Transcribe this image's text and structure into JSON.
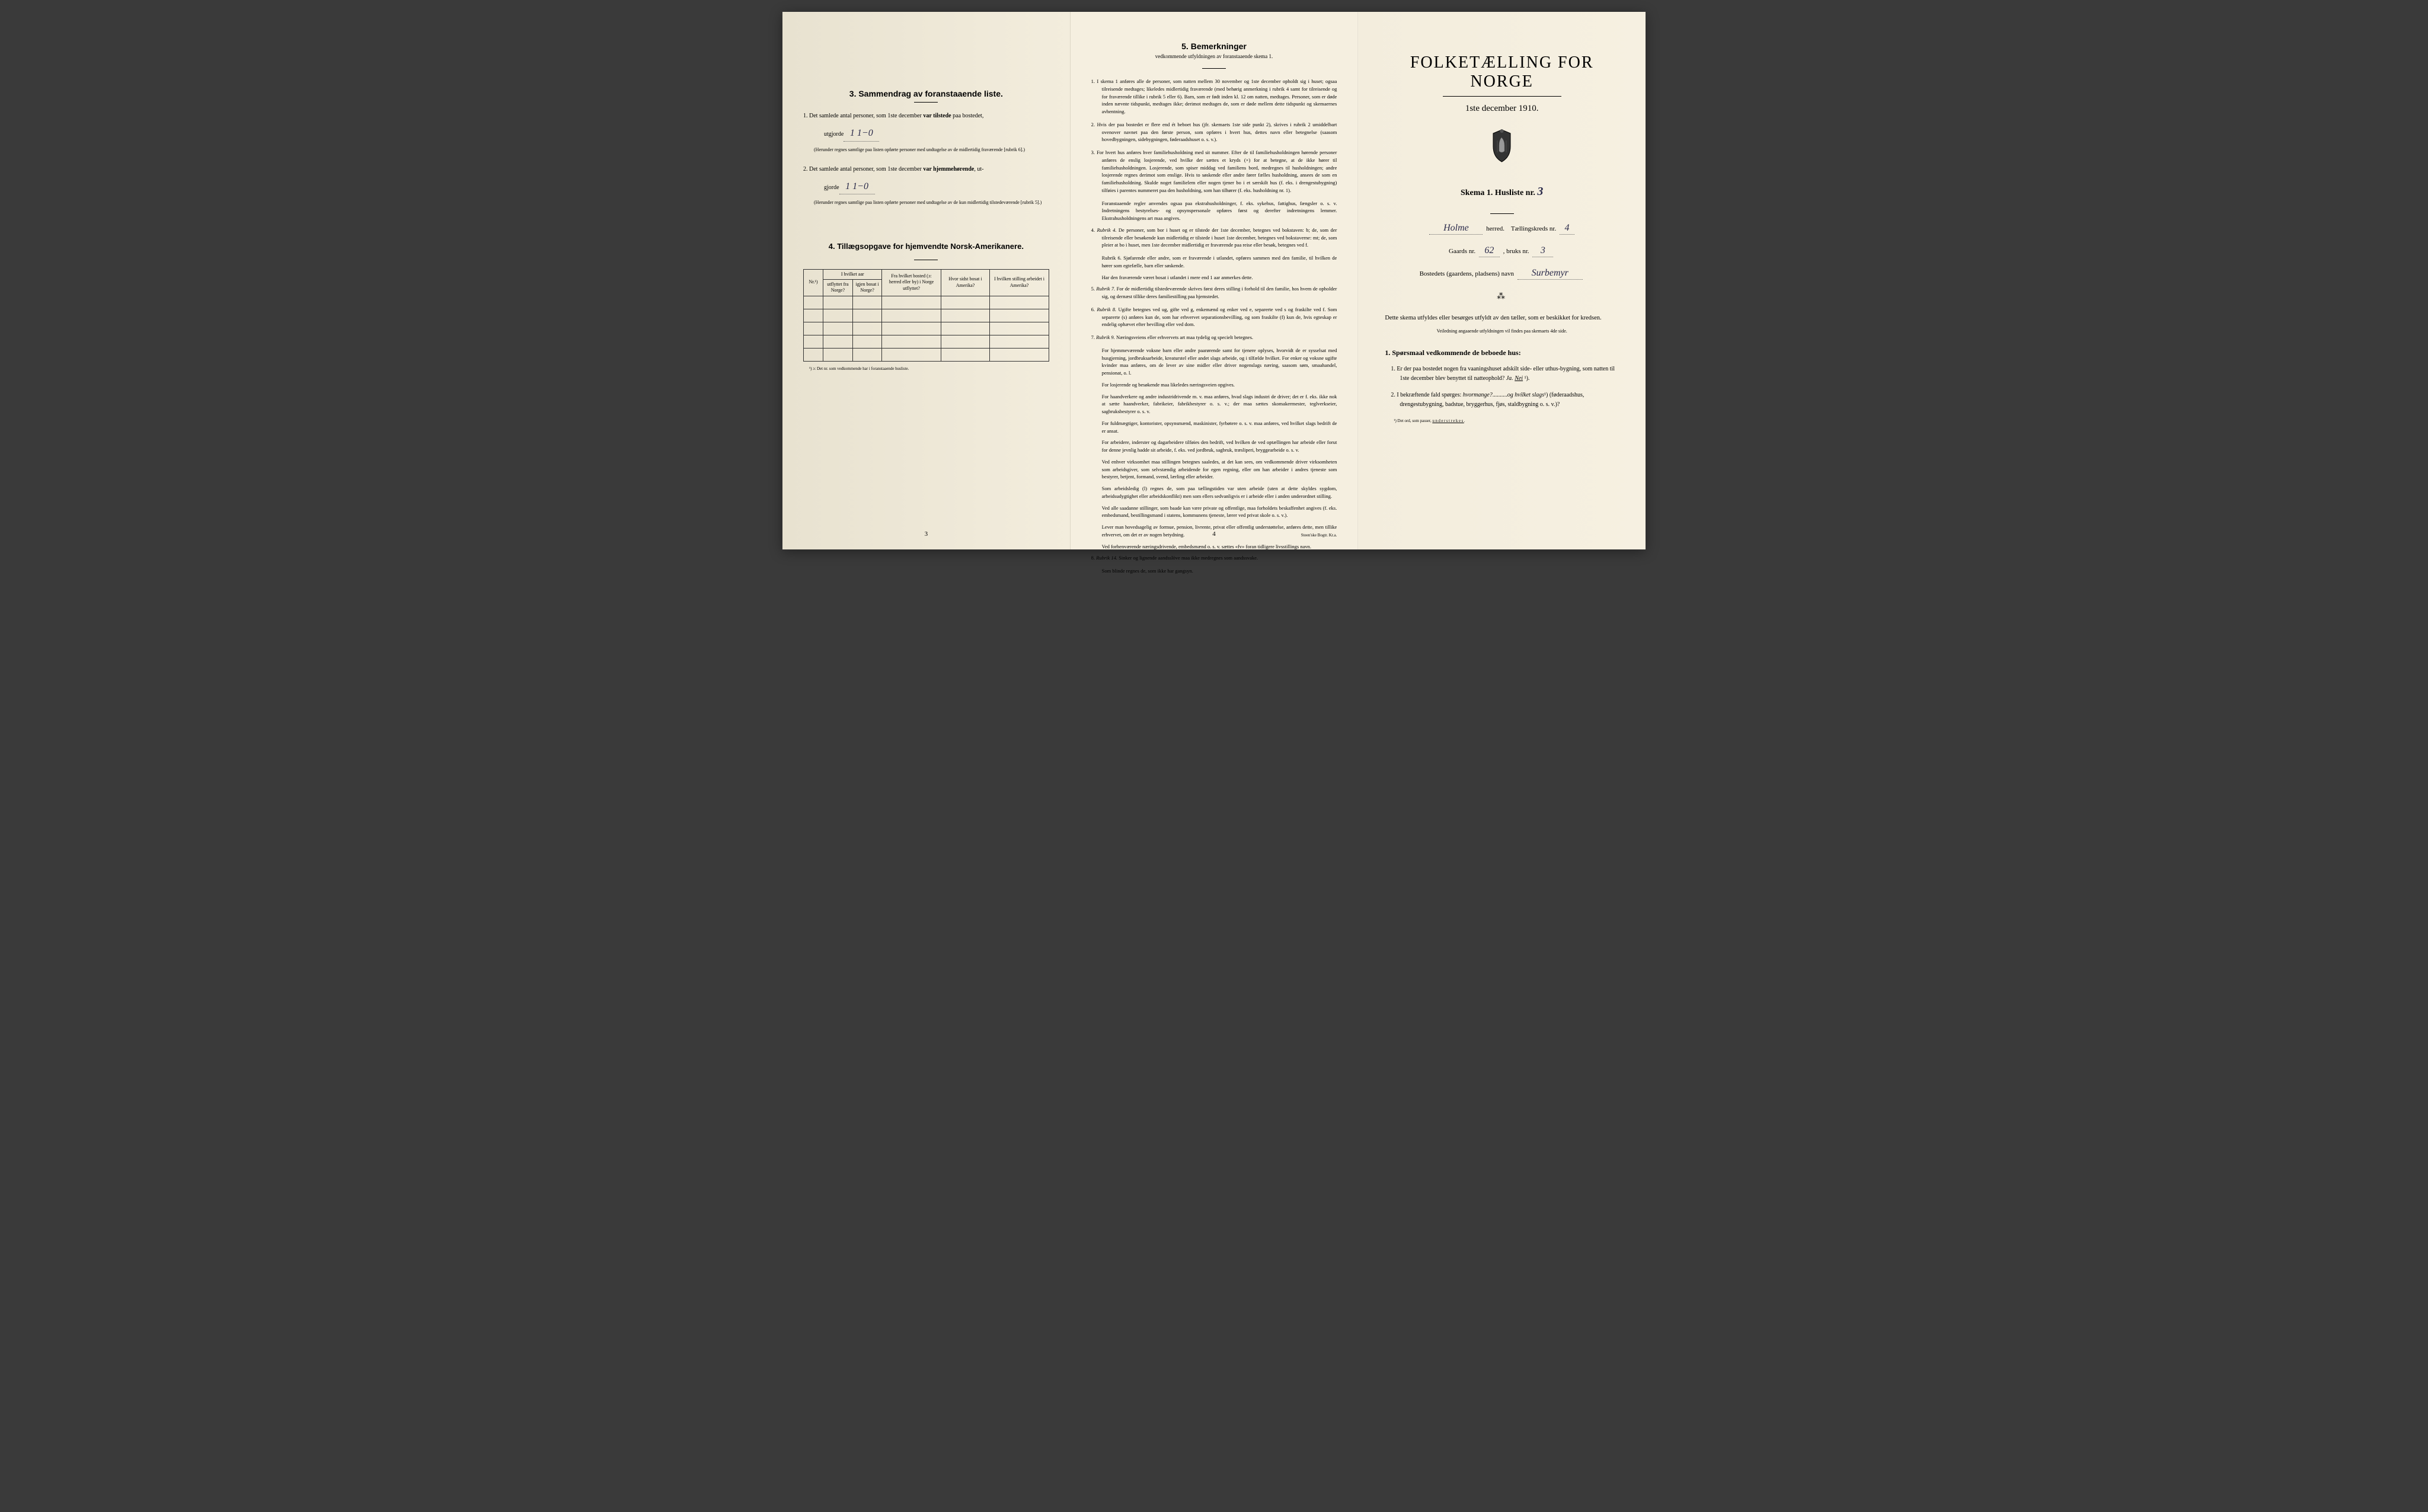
{
  "colors": {
    "paper": "#f5efe0",
    "paper_dark": "#e8e2d0",
    "text": "#1a1a1a",
    "handwriting": "#2a2a4a",
    "border": "#333333"
  },
  "page1": {
    "section3_heading": "3.   Sammendrag av foranstaaende liste.",
    "item1_prefix": "1.  Det samlede antal personer, som 1ste december ",
    "item1_bold": "var tilstede",
    "item1_suffix": " paa bostedet,",
    "item1_line2": "utgjorde",
    "item1_value": "1    1−0",
    "item1_note": "(Herunder regnes samtlige paa listen opførte personer med undtagelse av de midlertidig fraværende [rubrik 6].)",
    "item2_prefix": "2.  Det samlede antal personer, som 1ste december ",
    "item2_bold": "var hjemmehørende",
    "item2_suffix": ", ut-",
    "item2_line2": "gjorde",
    "item2_value": "1    1−0",
    "item2_note": "(Herunder regnes samtlige paa listen opførte personer med undtagelse av de kun midlertidig tilstedeværende [rubrik 5].)",
    "section4_heading": "4.  Tillægsopgave for hjemvendte Norsk-Amerikanere.",
    "table_headers": {
      "col1": "Nr.¹)",
      "col2_top": "I hvilket aar",
      "col2a": "utflyttet fra Norge?",
      "col2b": "igjen bosat i Norge?",
      "col3": "Fra hvilket bosted (ɔ: herred eller by) i Norge utflyttet?",
      "col4": "Hvor sidst bosat i Amerika?",
      "col5": "I hvilken stilling arbeidet i Amerika?"
    },
    "table_footnote": "¹) ɔ: Det nr. som vedkommende har i foranstaaende husliste.",
    "page_number": "3"
  },
  "page2": {
    "heading": "5.   Bemerkninger",
    "subheading": "vedkommende utfyldningen av foranstaaende skema 1.",
    "rules": [
      {
        "num": "1.",
        "text": "I skema 1 anføres alle de personer, som natten mellem 30 november og 1ste december opholdt sig i huset; ogsaa tilreisende medtages; likeledes midlertidig fraværende (med behørig anmerkning i rubrik 4 samt for tilreisende og for fraværende tillike i rubrik 5 eller 6). Barn, som er født inden kl. 12 om natten, medtages. Personer, som er døde inden nævnte tidspunkt, medtages ikke; derimot medtages de, som er døde mellem dette tidspunkt og skemaernes avhentning."
      },
      {
        "num": "2.",
        "text": "Hvis der paa bostedet er flere end ét beboet hus (jfr. skemaets 1ste side punkt 2), skrives i rubrik 2 umiddelbart ovenover navnet paa den første person, som opføres i hvert hus, dettes navn eller betegnelse (saasom hovedbygningen, sidebygningen, føderaadshuset o. s. v.)."
      },
      {
        "num": "3.",
        "text": "For hvert hus anføres hver familiehusholdning med sit nummer. Efter de til familiehusholdningen hørende personer anføres de enslig losjerende, ved hvilke der sættes et kryds (×) for at betegne, at de ikke hører til familiehusholdningen. Losjerende, som spiser middag ved familiens bord, medregnes til husholdningen; andre losjerende regnes derimot som enslige. Hvis to søskende eller andre fører fælles husholdning, ansees de som en familiehusholdning. Skulde noget familielem eller nogen tjener bo i et særskilt hus (f. eks. i drengestubygning) tilføies i parentes nummeret paa den husholdning, som han tilhører (f. eks. husholdning nr. 1).",
        "sub": "Foranstaaende regler anvendes ogsaa paa ekstrahusholdninger, f. eks. sykehus, fattighus, fængsler o. s. v. Indretningens bestyrelses- og opsynspersonale opføres først og derefter indretningens lemmer. Ekstrahusholdningens art maa angives."
      },
      {
        "num": "4.",
        "heading": "Rubrik 4.",
        "text": "De personer, som bor i huset og er tilstede der 1ste december, betegnes ved bokstaven: b; de, som der tilreisende eller besøkende kun midlertidig er tilstede i huset 1ste december, betegnes ved bokstaverne: mt; de, som pleier at bo i huset, men 1ste december midlertidig er fraværende paa reise eller besøk, betegnes ved f.",
        "sub1": "Rubrik 6.  Sjøfarende eller andre, som er fraværende i utlandet, opføres sammen med den familie, til hvilken de hører som egtefælle, barn eller søskende.",
        "sub2": "Har den fraværende været bosat i utlandet i mere end 1 aar anmerkes dette."
      },
      {
        "num": "5.",
        "heading": "Rubrik 7.",
        "text": "For de midlertidig tilstedeværende skrives først deres stilling i forhold til den familie, hos hvem de opholder sig, og dernæst tillike deres familiestilling paa hjemstedet."
      },
      {
        "num": "6.",
        "heading": "Rubrik 8.",
        "text": "Ugifte betegnes ved ug, gifte ved g, enkemænd og enker ved e, separerte ved s og fraskilte ved f. Som separerte (s) anføres kun de, som har erhvervet separationsbevilling, og som fraskilte (f) kun de, hvis egteskap er endelig ophævet efter bevilling eller ved dom."
      },
      {
        "num": "7.",
        "heading": "Rubrik 9.",
        "text": "Næringsveiens eller erhvervets art maa tydelig og specielt betegnes.",
        "para1": "For hjemmeværende voksne barn eller andre paarørende samt for tjenere oplyses, hvorvidt de er sysselsat med husgjerning, jordbruksarbeide, kreaturstel eller andet slags arbeide, og i tilfælde hvilket. For enker og voksne ugifte kvinder maa anføres, om de lever av sine midler eller driver nogenslags næring, saasom søm, smaahandel, pensionat, o. l.",
        "para2": "For losjerende og besøkende maa likeledes næringsveien opgives.",
        "para3": "For haandverkere og andre industridrivende m. v. maa anføres, hvad slags industri de driver; det er f. eks. ikke nok at sætte haandverker, fabrikeier, fabrikbestyrer o. s. v.; der maa sættes skomakermester, teglverkseier, sagbruksbestyrer o. s. v.",
        "para4": "For fuldmægtiger, kontorister, opsynsmænd, maskinister, fyrbøtere o. s. v. maa anføres, ved hvilket slags bedrift de er ansat.",
        "para5": "For arbeidere, inderster og dagarbeidere tilføies den bedrift, ved hvilken de ved optællingen har arbeide eller forut for denne jevnlig hadde sit arbeide, f. eks. ved jordbruk, sagbruk, træsliperi, bryggearbeide o. s. v.",
        "para6": "Ved enhver virksomhet maa stillingen betegnes saaledes, at det kan sees, om vedkommende driver virksomheten som arbeidsgiver, som selvstændig arbeidende for egen regning, eller om han arbeider i andres tjeneste som bestyrer, betjent, formand, svend, lærling eller arbeider.",
        "para7": "Som arbeidsledig (l) regnes de, som paa tællingstiden var uten arbeide (uten at dette skyldes sygdom, arbeidsudygtighet eller arbeidskonflikt) men som ellers sedvanligvis er i arbeide eller i anden underordnet stilling.",
        "para8": "Ved alle saadanne stillinger, som baade kan være private og offentlige, maa forholdets beskaffenhet angives (f. eks. embedsmand, bestillingsmand i statens, kommunens tjeneste, lærer ved privat skole o. s. v.).",
        "para9": "Lever man hovedsagelig av formue, pension, livrente, privat eller offentlig understøttelse, anføres dette, men tillike erhvervet, om det er av nogen betydning.",
        "para10": "Ved forhenværende næringsdrivende, embedsmænd o. s. v. sættes «fv» foran tidligere livsstillings navn."
      },
      {
        "num": "8.",
        "heading": "Rubrik 14.",
        "text": "Sinker og lignende aandsslöve maa ikke medregnes som aandssvake.",
        "sub": "Som blinde regnes de, som ikke har gangsyn."
      }
    ],
    "page_number": "4",
    "printer": "Steen'ske Bogtr.  Kr.a."
  },
  "page3": {
    "main_title": "FOLKETÆLLING FOR NORGE",
    "date": "1ste december 1910.",
    "skema_prefix": "Skema 1.   Husliste nr. ",
    "skema_value": "3",
    "herred_value": "Holme",
    "herred_label": " herred.",
    "kreds_label": "Tællingskreds nr.",
    "kreds_value": "4",
    "gaards_label": "Gaards nr. ",
    "gaards_value": "62",
    "bruks_label": ", bruks nr. ",
    "bruks_value": "3",
    "bosted_label": "Bostedets (gaardens, pladsens) navn ",
    "bosted_value": "Surbemyr",
    "instruction": "Dette skema utfyldes eller besørges utfyldt av den tæller, som er beskikket for kredsen.",
    "instruction_small": "Veiledning angaaende utfyldningen vil findes paa skemaets 4de side.",
    "q_heading": "1.  Spørsmaal vedkommende de beboede hus:",
    "q1": "1.  Er der paa bostedet nogen fra vaaningshuset adskilt side- eller uthus-bygning, som natten til 1ste december blev benyttet til natteophold?   Ja.   Nei ¹).",
    "q2": "2.  I bekræftende fald spørges: hvormange?..........og hvilket slags¹) (føderaadshus, drengestubygning, badstue, bryggerhus, fjøs, staldbygning o. s. v.)?",
    "footnote": "¹) Det ord, som passer, understrekes."
  }
}
